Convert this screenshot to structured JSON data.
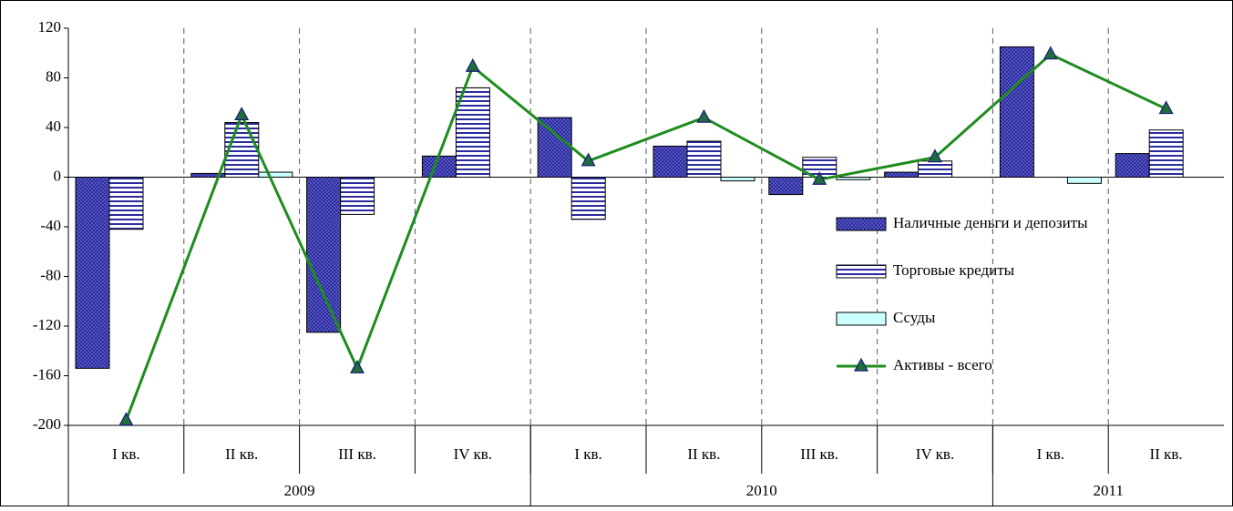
{
  "chart_data": {
    "type": "bar",
    "categories": [
      "I кв.",
      "II кв.",
      "III кв.",
      "IV кв.",
      "I кв.",
      "II кв.",
      "III кв.",
      "IV кв.",
      "I кв.",
      "II кв."
    ],
    "groups": [
      {
        "label": "2009",
        "span": 4
      },
      {
        "label": "2010",
        "span": 4
      },
      {
        "label": "2011",
        "span": 2
      }
    ],
    "series": [
      {
        "name": "Наличные деньги и депозиты",
        "color": "#2b2ba0",
        "pattern": "dots",
        "values": [
          -154,
          3,
          -125,
          17,
          48,
          25,
          -14,
          4,
          105,
          19
        ]
      },
      {
        "name": "Торговые кредиты",
        "color": "#2b2ba0",
        "pattern": "stripes",
        "values": [
          -42,
          44,
          -30,
          72,
          -34,
          29,
          16,
          13,
          0,
          38
        ]
      },
      {
        "name": "Ссуды",
        "color": "#ccffff",
        "pattern": "solid",
        "values": [
          0,
          4,
          0,
          0,
          0,
          -3,
          -2,
          0,
          -5,
          0
        ]
      },
      {
        "name": "Активы - всего",
        "type": "line",
        "color": "#1e8c1e",
        "marker_color": "#1f6e3c",
        "values": [
          -196,
          50,
          -154,
          89,
          13,
          48,
          -2,
          16,
          99,
          55
        ]
      }
    ],
    "ylim": [
      -200,
      120
    ],
    "yticks": [
      120,
      80,
      40,
      0,
      -40,
      -80,
      -120,
      -160,
      -200
    ],
    "grid": "dashed-vertical",
    "legend": "right"
  }
}
